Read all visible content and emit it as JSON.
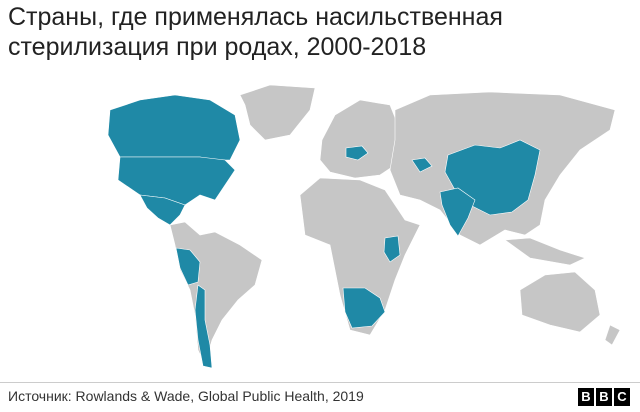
{
  "title": [
    "Страны, где применялась насильственная",
    "стерилизация при родах, 2000-2018"
  ],
  "source": "Источник: Rowlands & Wade, Global Public Health, 2019",
  "logo": [
    "B",
    "B",
    "C"
  ]
}
